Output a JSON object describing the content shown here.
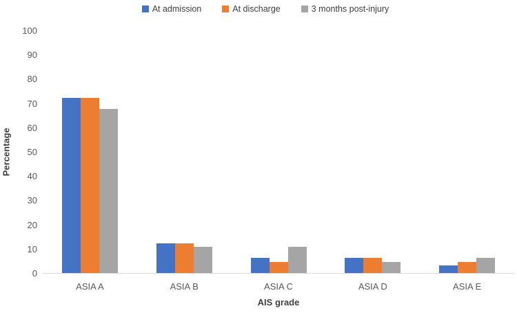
{
  "chart_data": {
    "type": "bar",
    "title": "",
    "xlabel": "AIS grade",
    "ylabel": "Percentage",
    "ylim": [
      0,
      100
    ],
    "ytick_step": 10,
    "grid": "baseline-only",
    "legend_position": "top",
    "categories": [
      "ASIA A",
      "ASIA B",
      "ASIA C",
      "ASIA D",
      "ASIA E"
    ],
    "series": [
      {
        "name": "At admission",
        "color": "#4472C4",
        "values": [
          72.3,
          12.3,
          6.2,
          6.2,
          3.1
        ]
      },
      {
        "name": "At discharge",
        "color": "#ED7D31",
        "values": [
          72.3,
          12.3,
          4.6,
          6.2,
          4.6
        ]
      },
      {
        "name": "3 months post-injury",
        "color": "#A5A5A5",
        "values": [
          67.7,
          10.8,
          10.8,
          4.6,
          6.2
        ]
      }
    ],
    "axis_line_color": "#D9D9D9",
    "tick_label_color": "#595959",
    "title_text_color": "#404040"
  }
}
